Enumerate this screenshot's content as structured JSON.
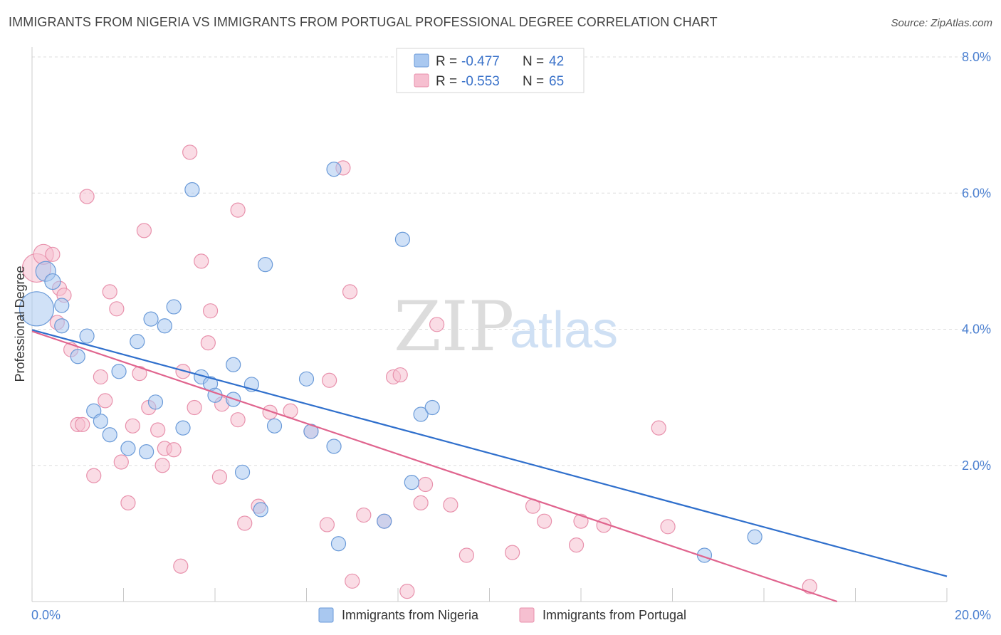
{
  "title": "IMMIGRANTS FROM NIGERIA VS IMMIGRANTS FROM PORTUGAL PROFESSIONAL DEGREE CORRELATION CHART",
  "source": "Source: ZipAtlas.com",
  "watermark": {
    "zip": "ZIP",
    "atlas": "atlas"
  },
  "legend": {
    "r_label": "R =",
    "n_label": "N =",
    "rows": [
      {
        "r": "-0.477",
        "n": "42"
      },
      {
        "r": "-0.553",
        "n": "65"
      }
    ]
  },
  "colors": {
    "nigeria_fill": "#a9c8f0",
    "nigeria_stroke": "#6a9ad8",
    "nigeria_line": "#2f6fcc",
    "portugal_fill": "#f6bfd0",
    "portugal_stroke": "#e891ac",
    "portugal_line": "#e0648e",
    "grid": "#dddddd",
    "tick_text": "#4a7fd0"
  },
  "chart_data": {
    "type": "scatter",
    "title": "IMMIGRANTS FROM NIGERIA VS IMMIGRANTS FROM PORTUGAL PROFESSIONAL DEGREE CORRELATION CHART",
    "xlabel": "",
    "ylabel": "Professional Degree",
    "xlim": [
      0,
      20
    ],
    "ylim": [
      0,
      8
    ],
    "x_ticks": [
      "0.0%",
      "20.0%"
    ],
    "y_ticks": [
      {
        "value": 2,
        "label": "2.0%"
      },
      {
        "value": 4,
        "label": "4.0%"
      },
      {
        "value": 6,
        "label": "6.0%"
      },
      {
        "value": 8,
        "label": "8.0%"
      }
    ],
    "grid": true,
    "legend_position": "top-center",
    "series": [
      {
        "name": "Immigrants from Nigeria",
        "r": -0.477,
        "n": 42,
        "trend": {
          "x": [
            0,
            20
          ],
          "y": [
            3.99,
            0.37
          ]
        },
        "points": [
          [
            0.1,
            4.3,
            24
          ],
          [
            0.3,
            4.85,
            14
          ],
          [
            0.45,
            4.7,
            11
          ],
          [
            0.65,
            4.35,
            10
          ],
          [
            0.65,
            4.05,
            10
          ],
          [
            1.2,
            3.9,
            10
          ],
          [
            1.0,
            3.6,
            10
          ],
          [
            1.35,
            2.8,
            10
          ],
          [
            1.5,
            2.65,
            10
          ],
          [
            1.7,
            2.45,
            10
          ],
          [
            1.9,
            3.38,
            10
          ],
          [
            2.1,
            2.25,
            10
          ],
          [
            2.3,
            3.82,
            10
          ],
          [
            2.5,
            2.2,
            10
          ],
          [
            2.6,
            4.15,
            10
          ],
          [
            2.7,
            2.93,
            10
          ],
          [
            2.9,
            4.05,
            10
          ],
          [
            3.1,
            4.33,
            10
          ],
          [
            3.3,
            2.55,
            10
          ],
          [
            3.5,
            6.05,
            10
          ],
          [
            3.7,
            3.3,
            10
          ],
          [
            3.9,
            3.2,
            10
          ],
          [
            4.0,
            3.03,
            10
          ],
          [
            4.4,
            3.48,
            10
          ],
          [
            4.4,
            2.97,
            10
          ],
          [
            4.6,
            1.9,
            10
          ],
          [
            4.8,
            3.19,
            10
          ],
          [
            5.1,
            4.95,
            10
          ],
          [
            5.3,
            2.58,
            10
          ],
          [
            6.0,
            3.27,
            10
          ],
          [
            6.1,
            2.5,
            10
          ],
          [
            6.6,
            6.35,
            10
          ],
          [
            6.6,
            2.28,
            10
          ],
          [
            6.7,
            0.85,
            10
          ],
          [
            7.7,
            1.18,
            10
          ],
          [
            8.1,
            5.32,
            10
          ],
          [
            8.3,
            1.75,
            10
          ],
          [
            8.5,
            2.75,
            10
          ],
          [
            8.75,
            2.85,
            10
          ],
          [
            5.0,
            1.35,
            10
          ],
          [
            15.8,
            0.95,
            10
          ],
          [
            14.7,
            0.68,
            10
          ]
        ]
      },
      {
        "name": "Immigrants from Portugal",
        "r": -0.553,
        "n": 65,
        "trend": {
          "x": [
            0,
            17.6
          ],
          "y": [
            3.97,
            0.0
          ]
        },
        "points": [
          [
            0.1,
            4.9,
            20
          ],
          [
            0.25,
            5.1,
            14
          ],
          [
            0.45,
            5.1,
            10
          ],
          [
            0.6,
            4.6,
            10
          ],
          [
            0.7,
            4.5,
            10
          ],
          [
            0.55,
            4.1,
            10
          ],
          [
            0.85,
            3.7,
            10
          ],
          [
            1.0,
            2.6,
            10
          ],
          [
            1.1,
            2.6,
            10
          ],
          [
            1.2,
            5.95,
            10
          ],
          [
            1.35,
            1.85,
            10
          ],
          [
            1.5,
            3.3,
            10
          ],
          [
            1.6,
            2.95,
            10
          ],
          [
            1.7,
            4.55,
            10
          ],
          [
            1.85,
            4.3,
            10
          ],
          [
            1.95,
            2.05,
            10
          ],
          [
            2.1,
            1.45,
            10
          ],
          [
            2.2,
            2.58,
            10
          ],
          [
            2.35,
            3.35,
            10
          ],
          [
            2.45,
            5.45,
            10
          ],
          [
            2.55,
            2.85,
            10
          ],
          [
            2.75,
            2.52,
            10
          ],
          [
            2.85,
            2.0,
            10
          ],
          [
            2.9,
            2.25,
            10
          ],
          [
            3.1,
            2.23,
            10
          ],
          [
            3.25,
            0.52,
            10
          ],
          [
            3.3,
            3.38,
            10
          ],
          [
            3.45,
            6.6,
            10
          ],
          [
            3.55,
            2.85,
            10
          ],
          [
            3.7,
            5.0,
            10
          ],
          [
            3.85,
            3.8,
            10
          ],
          [
            3.9,
            4.27,
            10
          ],
          [
            4.15,
            2.9,
            10
          ],
          [
            4.1,
            1.83,
            10
          ],
          [
            4.5,
            2.67,
            10
          ],
          [
            4.5,
            5.75,
            10
          ],
          [
            4.65,
            1.15,
            10
          ],
          [
            4.95,
            1.4,
            10
          ],
          [
            5.2,
            2.78,
            10
          ],
          [
            5.65,
            2.8,
            10
          ],
          [
            6.1,
            2.5,
            10
          ],
          [
            6.45,
            1.13,
            10
          ],
          [
            6.5,
            3.25,
            10
          ],
          [
            6.8,
            6.37,
            10
          ],
          [
            6.95,
            4.55,
            10
          ],
          [
            7.0,
            0.3,
            10
          ],
          [
            7.25,
            1.27,
            10
          ],
          [
            7.7,
            1.18,
            10
          ],
          [
            7.9,
            3.3,
            10
          ],
          [
            8.05,
            3.33,
            10
          ],
          [
            8.2,
            0.15,
            10
          ],
          [
            8.5,
            1.45,
            10
          ],
          [
            8.6,
            1.72,
            10
          ],
          [
            8.85,
            4.07,
            10
          ],
          [
            9.15,
            1.42,
            10
          ],
          [
            9.5,
            0.68,
            10
          ],
          [
            10.5,
            0.72,
            10
          ],
          [
            10.95,
            1.4,
            10
          ],
          [
            11.2,
            1.18,
            10
          ],
          [
            11.9,
            0.83,
            10
          ],
          [
            12.0,
            1.18,
            10
          ],
          [
            12.5,
            1.12,
            10
          ],
          [
            13.7,
            2.55,
            10
          ],
          [
            13.9,
            1.1,
            10
          ],
          [
            17.0,
            0.22,
            10
          ]
        ]
      }
    ]
  }
}
